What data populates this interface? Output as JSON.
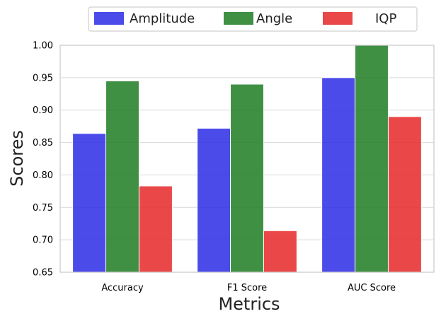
{
  "chart_data": {
    "type": "bar",
    "categories": [
      "Accuracy",
      "F1 Score",
      "AUC Score"
    ],
    "series": [
      {
        "name": "Amplitude",
        "color": "#2b2be6",
        "values": [
          0.864,
          0.872,
          0.95
        ]
      },
      {
        "name": "Angle",
        "color": "#1e7d23",
        "values": [
          0.945,
          0.94,
          1.0
        ]
      },
      {
        "name": "IQP",
        "color": "#e62828",
        "values": [
          0.783,
          0.714,
          0.89
        ]
      }
    ],
    "title": "",
    "xlabel": "Metrics",
    "ylabel": "Scores",
    "ylim": [
      0.65,
      1.0
    ],
    "yticks": [
      "0.65",
      "0.70",
      "0.75",
      "0.80",
      "0.85",
      "0.90",
      "0.95",
      "1.00"
    ],
    "grid": true,
    "legend_position": "top-center"
  }
}
